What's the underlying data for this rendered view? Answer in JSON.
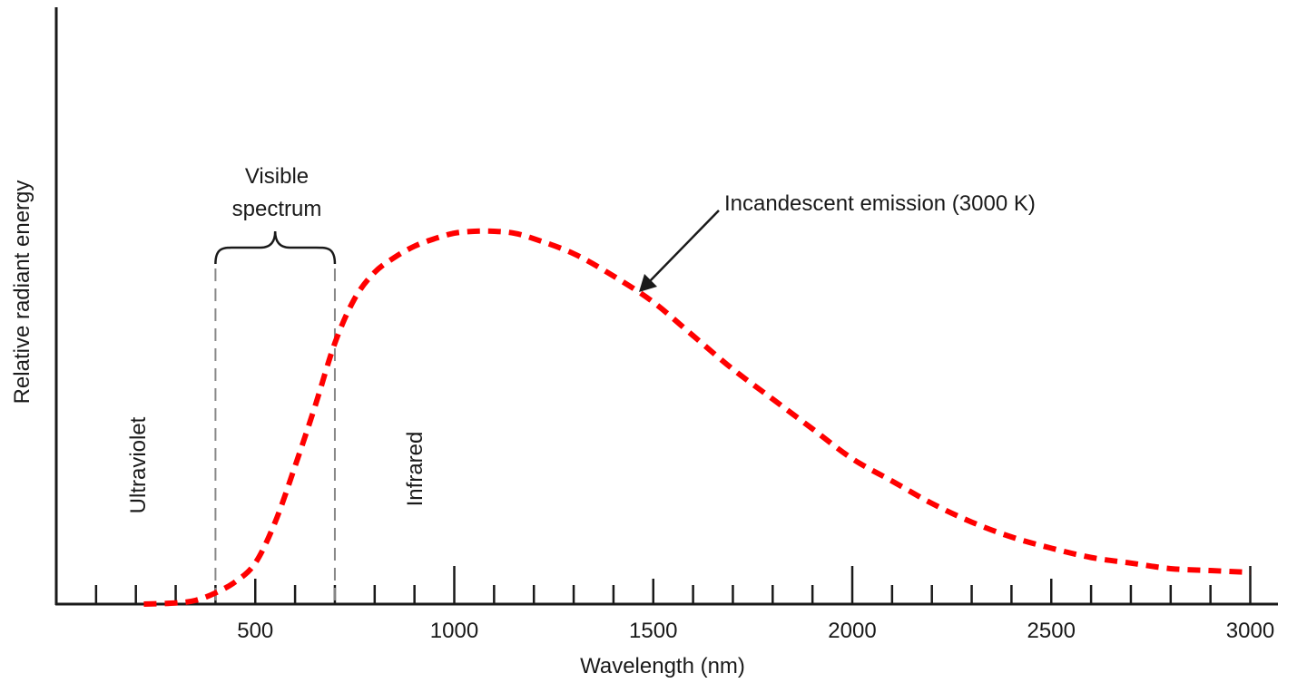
{
  "chart_data": {
    "type": "line",
    "title": "",
    "xlabel": "Wavelength (nm)",
    "ylabel": "Relative radiant energy",
    "xlim": [
      0,
      3050
    ],
    "ylim": [
      0,
      1
    ],
    "grid": false,
    "x_tick_labels": [
      "500",
      "1000",
      "1500",
      "2000",
      "2500",
      "3000"
    ],
    "x_tick_values": [
      500,
      1000,
      1500,
      2000,
      2500,
      3000
    ],
    "minor_tick_step": 100,
    "series": [
      {
        "name": "Incandescent emission (3000 K)",
        "color": "#ff0000",
        "style": "dashed",
        "x": [
          220,
          300,
          350,
          400,
          450,
          500,
          550,
          600,
          650,
          700,
          750,
          800,
          850,
          900,
          950,
          1000,
          1050,
          1100,
          1150,
          1200,
          1300,
          1400,
          1500,
          1600,
          1700,
          1800,
          1900,
          2000,
          2100,
          2200,
          2300,
          2400,
          2500,
          2600,
          2700,
          2800,
          2900,
          3000
        ],
        "y": [
          0.0,
          0.003,
          0.01,
          0.03,
          0.06,
          0.11,
          0.22,
          0.37,
          0.53,
          0.7,
          0.82,
          0.89,
          0.93,
          0.96,
          0.98,
          0.995,
          1.0,
          1.0,
          0.995,
          0.98,
          0.94,
          0.88,
          0.81,
          0.72,
          0.63,
          0.55,
          0.47,
          0.39,
          0.33,
          0.27,
          0.22,
          0.18,
          0.15,
          0.125,
          0.11,
          0.095,
          0.09,
          0.085
        ]
      }
    ],
    "annotations": {
      "visible_label_line1": "Visible",
      "visible_label_line2": "spectrum",
      "visible_range": [
        400,
        700
      ],
      "ultraviolet": "Ultraviolet",
      "infrared": "Infrared",
      "emission_label": "Incandescent emission (3000 K)"
    }
  }
}
